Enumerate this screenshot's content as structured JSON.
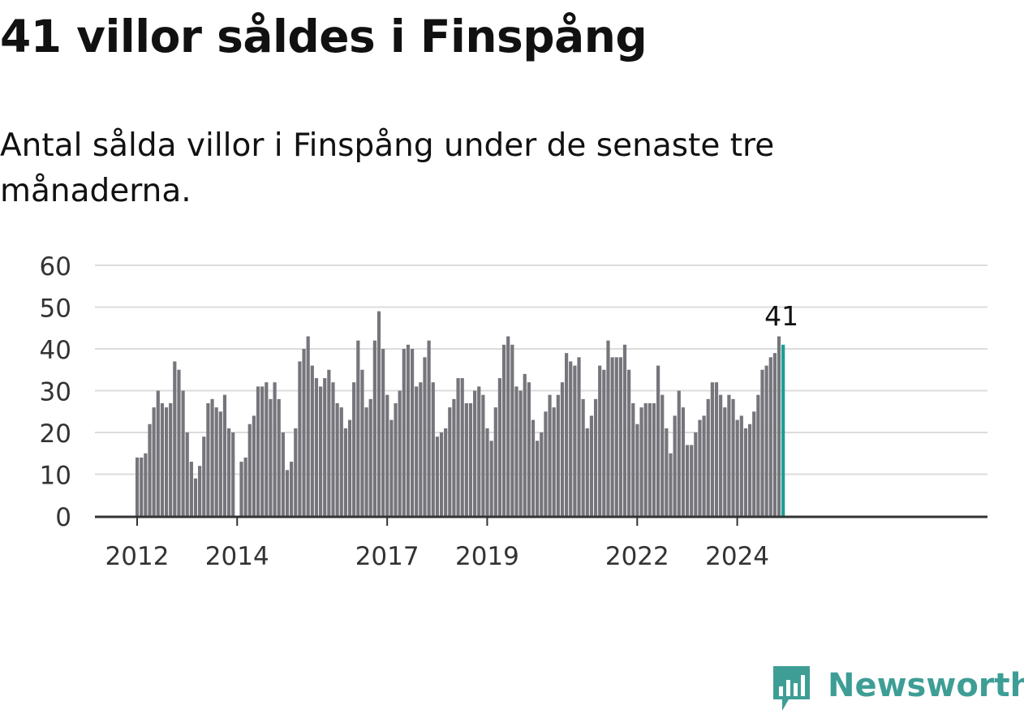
{
  "title": "41 villor såldes i Finspång",
  "subtitle": "Antal sålda villor i Finspång under de senaste tre månaderna.",
  "brand": {
    "name": "Newsworthy",
    "color": "#3e9e96"
  },
  "chart_data": {
    "type": "bar",
    "title": "41 villor såldes i Finspång",
    "subtitle": "Antal sålda villor i Finspång under de senaste tre månaderna.",
    "xlabel": "",
    "ylabel": "",
    "ylim": [
      0,
      60
    ],
    "yticks": [
      0,
      10,
      20,
      30,
      40,
      50,
      60
    ],
    "xticks": [
      {
        "label": "2012",
        "index": 0
      },
      {
        "label": "2014",
        "index": 24
      },
      {
        "label": "2017",
        "index": 60
      },
      {
        "label": "2019",
        "index": 84
      },
      {
        "label": "2022",
        "index": 120
      },
      {
        "label": "2024",
        "index": 144
      }
    ],
    "grid": true,
    "bar_color": "#76757b",
    "highlight_color": "#1a9e92",
    "highlight_label": "41",
    "start": "2012-01",
    "frequency": "monthly",
    "values": [
      14,
      14,
      15,
      22,
      26,
      30,
      27,
      26,
      27,
      37,
      35,
      30,
      20,
      13,
      9,
      12,
      19,
      27,
      28,
      26,
      25,
      29,
      21,
      20,
      null,
      13,
      14,
      22,
      24,
      31,
      31,
      32,
      28,
      32,
      28,
      20,
      11,
      13,
      21,
      37,
      40,
      43,
      36,
      33,
      31,
      33,
      35,
      32,
      27,
      26,
      21,
      23,
      32,
      42,
      35,
      26,
      28,
      42,
      49,
      40,
      29,
      23,
      27,
      30,
      40,
      41,
      40,
      31,
      32,
      38,
      42,
      32,
      19,
      20,
      21,
      26,
      28,
      33,
      33,
      27,
      27,
      30,
      31,
      29,
      21,
      18,
      26,
      33,
      41,
      43,
      41,
      31,
      30,
      34,
      32,
      23,
      18,
      20,
      25,
      29,
      26,
      29,
      32,
      39,
      37,
      36,
      38,
      28,
      21,
      24,
      28,
      36,
      35,
      42,
      38,
      38,
      38,
      41,
      35,
      27,
      22,
      26,
      27,
      27,
      27,
      36,
      29,
      21,
      15,
      24,
      30,
      26,
      17,
      17,
      20,
      23,
      24,
      28,
      32,
      32,
      29,
      26,
      29,
      28,
      23,
      24,
      21,
      22,
      25,
      29,
      35,
      36,
      38,
      39,
      43,
      41
    ]
  }
}
